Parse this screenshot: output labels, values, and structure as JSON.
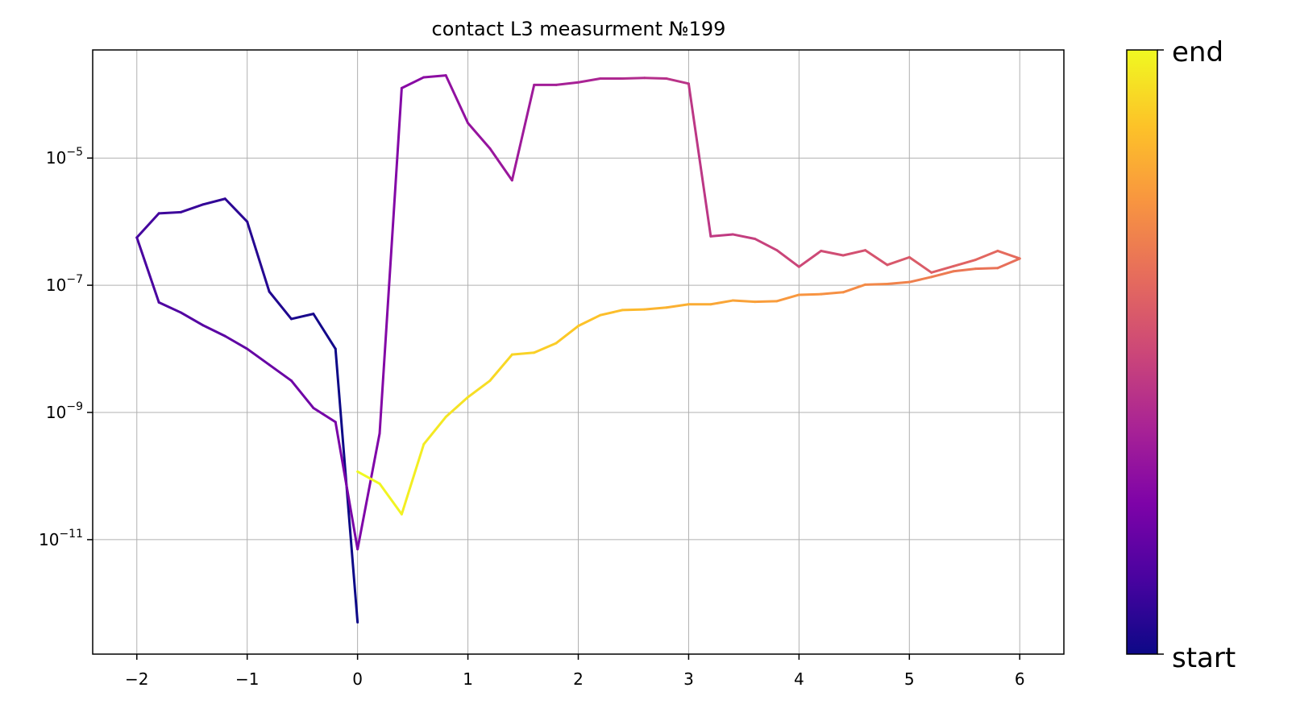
{
  "chart_data": {
    "type": "line",
    "title": "contact L3 measurment №199",
    "xlabel": "",
    "ylabel": "",
    "xlim": [
      -2.4,
      6.4
    ],
    "ylim_log10": [
      -12.8,
      -3.3
    ],
    "yscale": "log",
    "grid": true,
    "x_ticks": [
      -2,
      -1,
      0,
      1,
      2,
      3,
      4,
      5,
      6
    ],
    "x_tick_labels": [
      "−2",
      "−1",
      "0",
      "1",
      "2",
      "3",
      "4",
      "5",
      "6"
    ],
    "y_ticks_exp": [
      -11,
      -9,
      -7,
      -5
    ],
    "y_tick_labels": [
      {
        "base": "10",
        "exp": "−11"
      },
      {
        "base": "10",
        "exp": "−9"
      },
      {
        "base": "10",
        "exp": "−7"
      },
      {
        "base": "10",
        "exp": "−5"
      }
    ],
    "colormap": "plasma",
    "colorbar": {
      "start_label": "start",
      "end_label": "end"
    },
    "series": [
      {
        "x": [
          0,
          -0.2,
          -0.4,
          -0.6,
          -0.8,
          -1.0,
          -1.2,
          -1.4,
          -1.6,
          -1.8,
          -2.0,
          -1.8,
          -1.6,
          -1.4,
          -1.2,
          -1.0,
          -0.8,
          -0.6,
          -0.4,
          -0.2,
          0.0,
          0.2,
          0.4,
          0.6,
          0.8,
          1.0,
          1.2,
          1.4,
          1.6,
          1.8,
          2.0,
          2.2,
          2.4,
          2.6,
          2.8,
          3.0,
          3.2,
          3.4,
          3.6,
          3.8,
          4.0,
          4.2,
          4.4,
          4.6,
          4.8,
          5.0,
          5.2,
          5.4,
          5.6,
          5.8,
          6.0,
          5.8,
          5.6,
          5.4,
          5.2,
          5.0,
          4.8,
          4.6,
          4.4,
          4.2,
          4.0,
          3.8,
          3.6,
          3.4,
          3.2,
          3.0,
          2.8,
          2.6,
          2.4,
          2.2,
          2.0,
          1.8,
          1.6,
          1.4,
          1.2,
          1.0,
          0.8,
          0.6,
          0.4,
          0.2,
          0.0
        ],
        "log10_y": [
          -12.3,
          -8.0,
          -7.45,
          -7.53,
          -7.1,
          -6.0,
          -5.64,
          -5.73,
          -5.85,
          -5.87,
          -6.25,
          -7.27,
          -7.43,
          -7.63,
          -7.8,
          -8.0,
          -8.25,
          -8.5,
          -8.93,
          -9.15,
          -11.15,
          -9.33,
          -3.9,
          -3.73,
          -3.7,
          -4.45,
          -4.85,
          -5.35,
          -3.85,
          -3.85,
          -3.81,
          -3.75,
          -3.75,
          -3.74,
          -3.75,
          -3.83,
          -6.23,
          -6.2,
          -6.27,
          -6.45,
          -6.71,
          -6.46,
          -6.53,
          -6.45,
          -6.68,
          -6.56,
          -6.8,
          -6.7,
          -6.6,
          -6.46,
          -6.58,
          -6.73,
          -6.74,
          -6.78,
          -6.87,
          -6.95,
          -6.98,
          -6.99,
          -7.11,
          -7.14,
          -7.15,
          -7.25,
          -7.26,
          -7.24,
          -7.3,
          -7.3,
          -7.35,
          -7.38,
          -7.39,
          -7.47,
          -7.64,
          -7.91,
          -8.06,
          -8.09,
          -8.5,
          -8.76,
          -9.07,
          -9.5,
          -10.6,
          -10.12,
          -9.93
        ]
      }
    ]
  }
}
